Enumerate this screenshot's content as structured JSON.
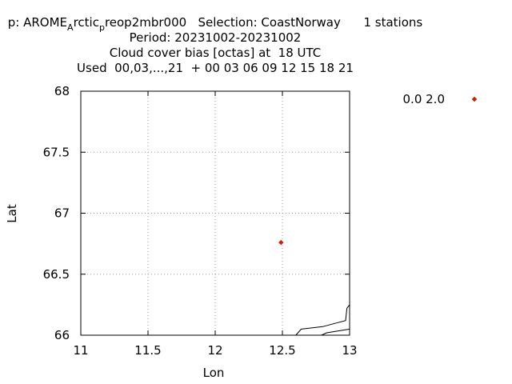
{
  "chart_data": {
    "type": "scatter",
    "title_lines": [
      {
        "parts": [
          {
            "text": "p: AROME",
            "sub": false
          },
          {
            "text": "A",
            "sub": true
          },
          {
            "text": "rctic",
            "sub": false
          },
          {
            "text": "p",
            "sub": true
          },
          {
            "text": "reop2mbr000   Selection: CoastNorway      1 stations",
            "sub": false
          }
        ]
      },
      {
        "parts": [
          {
            "text": "Period: 20231002-20231002",
            "sub": false
          }
        ]
      },
      {
        "parts": [
          {
            "text": "Cloud cover bias [octas] at  18 UTC",
            "sub": false
          }
        ]
      },
      {
        "parts": [
          {
            "text": "Used  00,03,...,21  + 00 03 06 09 12 15 18 21",
            "sub": false
          }
        ]
      }
    ],
    "xlabel": "Lon",
    "ylabel": "Lat",
    "xlim": [
      11,
      13
    ],
    "ylim": [
      66,
      68
    ],
    "xticks": [
      11,
      11.5,
      12,
      12.5,
      13
    ],
    "yticks": [
      66,
      66.5,
      67,
      67.5,
      68
    ],
    "grid": true,
    "legend": {
      "placement": "top-right",
      "label": "0.0 2.0",
      "color": "#cc2200"
    },
    "series": [
      {
        "color": "#cc2200",
        "marker": "diamond",
        "points": [
          {
            "x": 12.49,
            "y": 66.76
          }
        ]
      }
    ],
    "coastline": [
      [
        [
          12.6,
          66.0
        ],
        [
          12.64,
          66.05
        ],
        [
          12.8,
          66.07
        ],
        [
          12.9,
          66.1
        ],
        [
          12.97,
          66.12
        ],
        [
          12.98,
          66.22
        ],
        [
          13.0,
          66.25
        ]
      ],
      [
        [
          12.79,
          66.0
        ],
        [
          12.83,
          66.02
        ],
        [
          13.0,
          66.05
        ]
      ]
    ]
  }
}
